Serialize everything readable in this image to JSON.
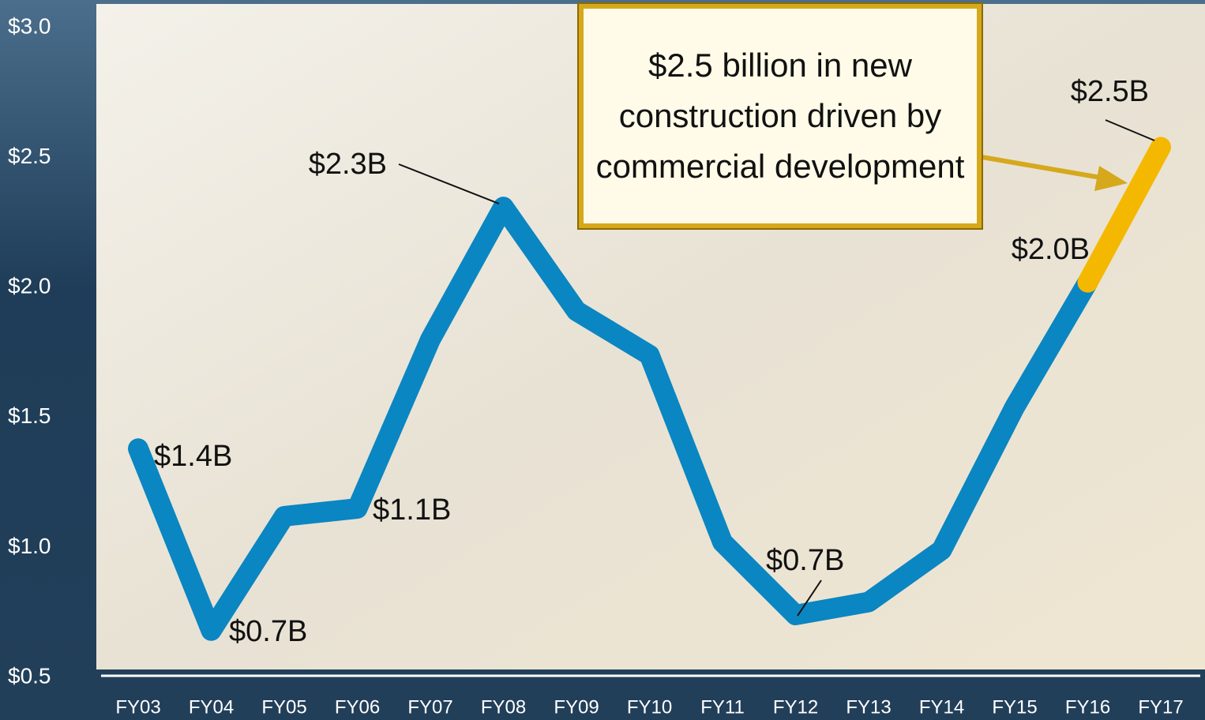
{
  "chart_data": {
    "type": "line",
    "categories": [
      "FY03",
      "FY04",
      "FY05",
      "FY06",
      "FY07",
      "FY08",
      "FY09",
      "FY10",
      "FY11",
      "FY12",
      "FY13",
      "FY14",
      "FY15",
      "FY16",
      "FY17"
    ],
    "series": [
      {
        "color": "#0a86c2",
        "values": [
          1.38,
          0.68,
          1.12,
          1.15,
          1.8,
          2.31,
          1.91,
          1.74,
          1.02,
          0.74,
          0.79,
          0.99,
          1.54,
          2.02,
          null
        ],
        "value_labels": [
          "$1.4B",
          "$0.7B",
          null,
          "$1.1B",
          null,
          "$2.3B",
          null,
          null,
          null,
          "$0.7B",
          null,
          null,
          null,
          "$2.0B",
          null
        ]
      },
      {
        "color": "#f5b800",
        "values": [
          null,
          null,
          null,
          null,
          null,
          null,
          null,
          null,
          null,
          null,
          null,
          null,
          null,
          2.02,
          2.54
        ],
        "value_labels": [
          null,
          null,
          null,
          null,
          null,
          null,
          null,
          null,
          null,
          null,
          null,
          null,
          null,
          null,
          "$2.5B"
        ]
      }
    ],
    "ylim": [
      0.5,
      3.0
    ],
    "yticks": [
      {
        "value": 0.5,
        "label": "$0.5"
      },
      {
        "value": 1.0,
        "label": "$1.0"
      },
      {
        "value": 1.5,
        "label": "$1.5"
      },
      {
        "value": 2.0,
        "label": "$2.0"
      },
      {
        "value": 2.5,
        "label": "$2.5"
      },
      {
        "value": 3.0,
        "label": "$3.0"
      }
    ],
    "grid": false,
    "annotation": "$2.5 billion in new construction driven by commercial development"
  }
}
